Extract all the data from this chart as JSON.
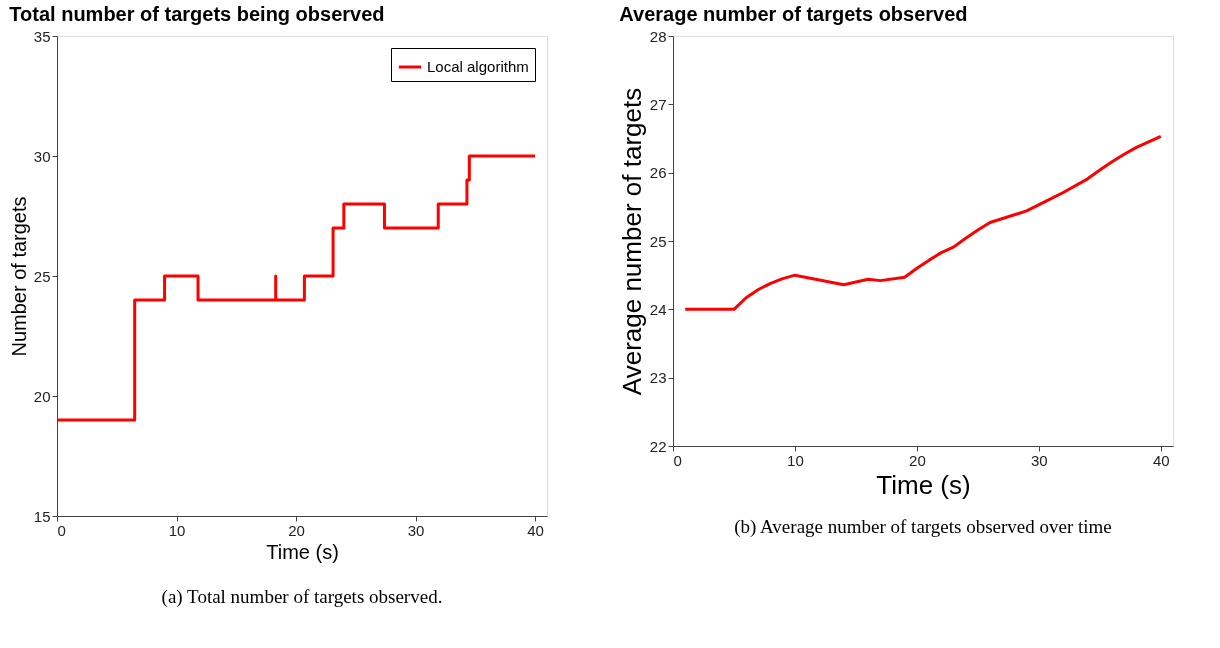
{
  "chart_data": [
    {
      "type": "step",
      "title": "Total number of targets being observed",
      "xlabel": "Time (s)",
      "ylabel": "Number of targets",
      "x": [
        0,
        6.5,
        9,
        11.8,
        18.3,
        18.3,
        20.7,
        23.1,
        24,
        27.4,
        31.9,
        34.3,
        34.5,
        40
      ],
      "series": [
        {
          "name": "Local algorithm",
          "color": "#ff0000",
          "values": [
            19,
            24,
            25,
            24,
            25,
            24,
            25,
            27,
            28,
            27,
            28,
            29,
            30,
            30
          ]
        }
      ],
      "xlim": [
        0,
        41
      ],
      "ylim": [
        15,
        35
      ],
      "xticks": [
        0,
        10,
        20,
        30,
        40
      ],
      "yticks": [
        15,
        20,
        25,
        30,
        35
      ],
      "legend": "top right",
      "grid": false,
      "annotations": [
        "(a) Total number of targets observed."
      ]
    },
    {
      "type": "line",
      "title": "Average number of targets observed",
      "xlabel": "Time (s)",
      "ylabel": "Average number of targets",
      "x": [
        1,
        5,
        6,
        7,
        8,
        9,
        10,
        12,
        14,
        16,
        17,
        19,
        20,
        21,
        22,
        23,
        24,
        25,
        26,
        29,
        31,
        32,
        34,
        35,
        36,
        37,
        38,
        40
      ],
      "series": [
        {
          "color": "#ff0000",
          "values": [
            24.0,
            24.0,
            24.17,
            24.29,
            24.38,
            24.45,
            24.5,
            24.43,
            24.36,
            24.44,
            24.42,
            24.47,
            24.6,
            24.72,
            24.83,
            24.91,
            25.04,
            25.16,
            25.27,
            25.44,
            25.62,
            25.71,
            25.91,
            26.04,
            26.16,
            26.27,
            26.37,
            26.53
          ]
        }
      ],
      "xlim": [
        0,
        41
      ],
      "ylim": [
        22,
        28
      ],
      "xticks": [
        0,
        10,
        20,
        30,
        40
      ],
      "yticks": [
        22,
        23,
        24,
        25,
        26,
        27,
        28
      ],
      "legend": false,
      "grid": false,
      "annotations": [
        "(b) Average number of targets observed over time"
      ]
    }
  ]
}
